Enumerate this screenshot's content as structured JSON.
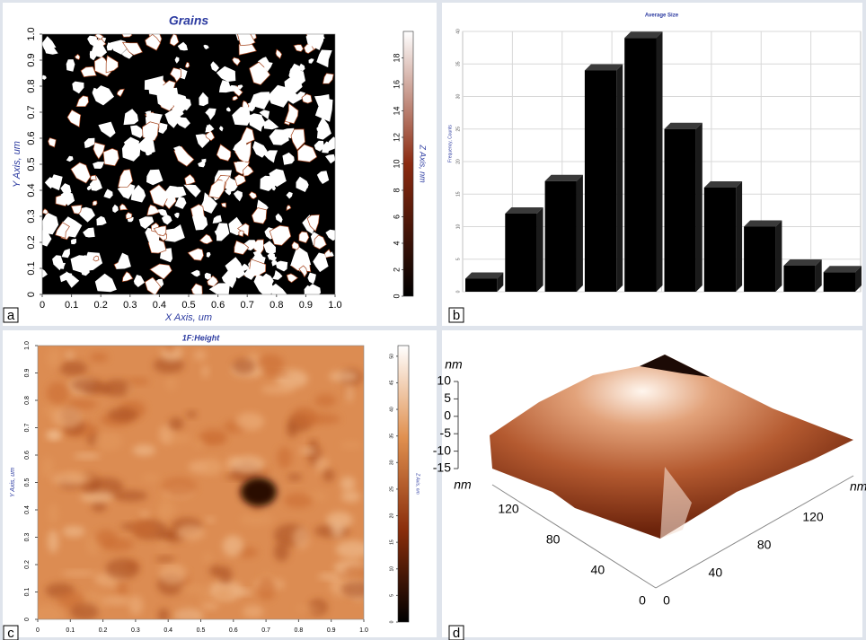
{
  "chart_data": [
    {
      "type": "image",
      "title": "Grains",
      "x_label": "X Axis, um",
      "y_label": "Y Axis, um",
      "z_label": "Z Axis, nm",
      "panel_label": "a",
      "xlim": [
        0,
        1
      ],
      "xticks": [
        0,
        0.1,
        0.2,
        0.3,
        0.4,
        0.5,
        0.6,
        0.7,
        0.8,
        0.9,
        {
          "value": 1,
          "label": "1.0"
        }
      ],
      "ylim": [
        0,
        1
      ],
      "yticks": [
        0,
        0.1,
        0.2,
        0.3,
        0.4,
        0.5,
        0.6,
        0.7,
        0.8,
        0.9,
        {
          "value": 1,
          "label": "1.0"
        }
      ],
      "zlim": [
        0,
        20
      ],
      "zticks": [
        0,
        2,
        4,
        6,
        8,
        10,
        12,
        14,
        16,
        18
      ],
      "colormap": [
        "#000000",
        "#8b2a10",
        "#ffffff"
      ]
    },
    {
      "type": "bar",
      "title": "Average Size",
      "y_label": "Frequency, Counts",
      "panel_label": "b",
      "categories": [
        null,
        null,
        null,
        null,
        null,
        null,
        null,
        null,
        null,
        null
      ],
      "values": [
        2,
        12,
        17,
        34,
        39,
        25,
        16,
        10,
        4,
        3
      ],
      "color": "#000000",
      "ylim": [
        0,
        40
      ],
      "yticks": [
        0,
        5,
        10,
        15,
        20,
        25,
        30,
        35,
        40
      ],
      "grid": true
    },
    {
      "type": "image",
      "title": "1F:Height",
      "y_label": "Y Axis, um",
      "z_label": "Z Axis, nm",
      "panel_label": "c",
      "xlim": [
        0,
        1
      ],
      "xticks": [
        0,
        0.1,
        0.2,
        0.3,
        0.4,
        0.5,
        0.6,
        0.7,
        0.8,
        0.9,
        {
          "value": 1,
          "label": "1.0"
        }
      ],
      "ylim": [
        0,
        1
      ],
      "yticks": [
        0,
        0.1,
        0.2,
        0.3,
        0.4,
        0.5,
        0.6,
        0.7,
        0.8,
        0.9,
        {
          "value": 1,
          "label": "1.0"
        }
      ],
      "zlim": [
        0,
        52
      ],
      "zticks": [
        0,
        5,
        10,
        15,
        20,
        25,
        30,
        35,
        40,
        45,
        50
      ],
      "colormap": [
        "#000000",
        "#8a2e0c",
        "#e0904f",
        "#ffffff"
      ]
    },
    {
      "type": "surface",
      "panel_label": "d",
      "z_label": "nm",
      "x_label": "nm",
      "y_label": "nm",
      "zlim": [
        -15,
        10
      ],
      "zticks": [
        10,
        5,
        0,
        -5,
        -10,
        -15
      ],
      "xlim": [
        0,
        120
      ],
      "xticks": [
        0,
        40,
        80,
        120
      ],
      "ylim": [
        0,
        120
      ],
      "yticks": [
        0,
        40,
        80,
        120
      ]
    }
  ]
}
